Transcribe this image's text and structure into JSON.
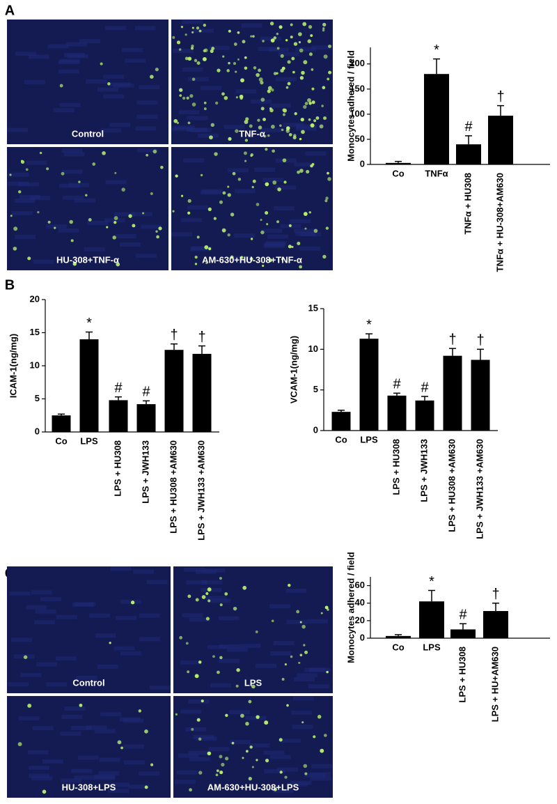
{
  "panel_labels": [
    "A",
    "B",
    "C"
  ],
  "images_a": [
    "Control",
    "TNF-α",
    "HU-308+TNF-α",
    "AM-630+HU-308+TNF-α"
  ],
  "images_c": [
    "Control",
    "LPS",
    "HU-308+LPS",
    "AM-630+HU-308+LPS"
  ],
  "chart_data": [
    {
      "type": "bar",
      "y_label": "Monocytes adhered / field",
      "categories": [
        "Co",
        "TNFα",
        "TNFα + HU308",
        "TNFα + HU-308+AM630"
      ],
      "values": [
        3,
        180,
        40,
        97
      ],
      "errors": [
        3,
        30,
        17,
        20
      ],
      "annotations": [
        null,
        "*",
        "#",
        "†"
      ],
      "color": "#000000",
      "ylim": [
        0,
        233
      ],
      "yticks": [
        0,
        50,
        100,
        150,
        200
      ]
    },
    {
      "type": "bar",
      "y_label": "ICAM-1(ng/mg)",
      "categories": [
        "Co",
        "LPS",
        "LPS + HU308",
        "LPS + JWH133",
        "LPS + HU308 +AM630",
        "LPS + JWH133 +AM630"
      ],
      "values": [
        2.5,
        14,
        4.8,
        4.2,
        12.4,
        11.8
      ],
      "errors": [
        0.2,
        1.1,
        0.5,
        0.5,
        0.9,
        1.2
      ],
      "annotations": [
        null,
        "*",
        "#",
        "#",
        "†",
        "†"
      ],
      "color": "#000000",
      "ylim": [
        0,
        20
      ],
      "yticks": [
        0,
        5,
        10,
        15,
        20
      ]
    },
    {
      "type": "bar",
      "y_label": "VCAM-1(ng/mg)",
      "categories": [
        "Co",
        "LPS",
        "LPS + HU308",
        "LPS + JWH133",
        "LPS + HU308 +AM630",
        "LPS + JWH133 +AM630"
      ],
      "values": [
        2.3,
        11.3,
        4.3,
        3.7,
        9.2,
        8.7
      ],
      "errors": [
        0.2,
        0.6,
        0.3,
        0.5,
        0.9,
        1.3
      ],
      "annotations": [
        null,
        "*",
        "#",
        "#",
        "†",
        "†"
      ],
      "color": "#000000",
      "ylim": [
        0,
        15
      ],
      "yticks": [
        0,
        5,
        10,
        15
      ]
    },
    {
      "type": "bar",
      "y_label": "Monocytes adhered / field",
      "categories": [
        "Co",
        "LPS",
        "LPS + HU308",
        "LPS + HU+AM630"
      ],
      "values": [
        2.5,
        42,
        10,
        31
      ],
      "errors": [
        1.5,
        12.5,
        6.5,
        9
      ],
      "annotations": [
        null,
        "*",
        "#",
        "†"
      ],
      "color": "#000000",
      "ylim": [
        0,
        70
      ],
      "yticks": [
        0,
        20,
        40,
        60
      ]
    }
  ]
}
